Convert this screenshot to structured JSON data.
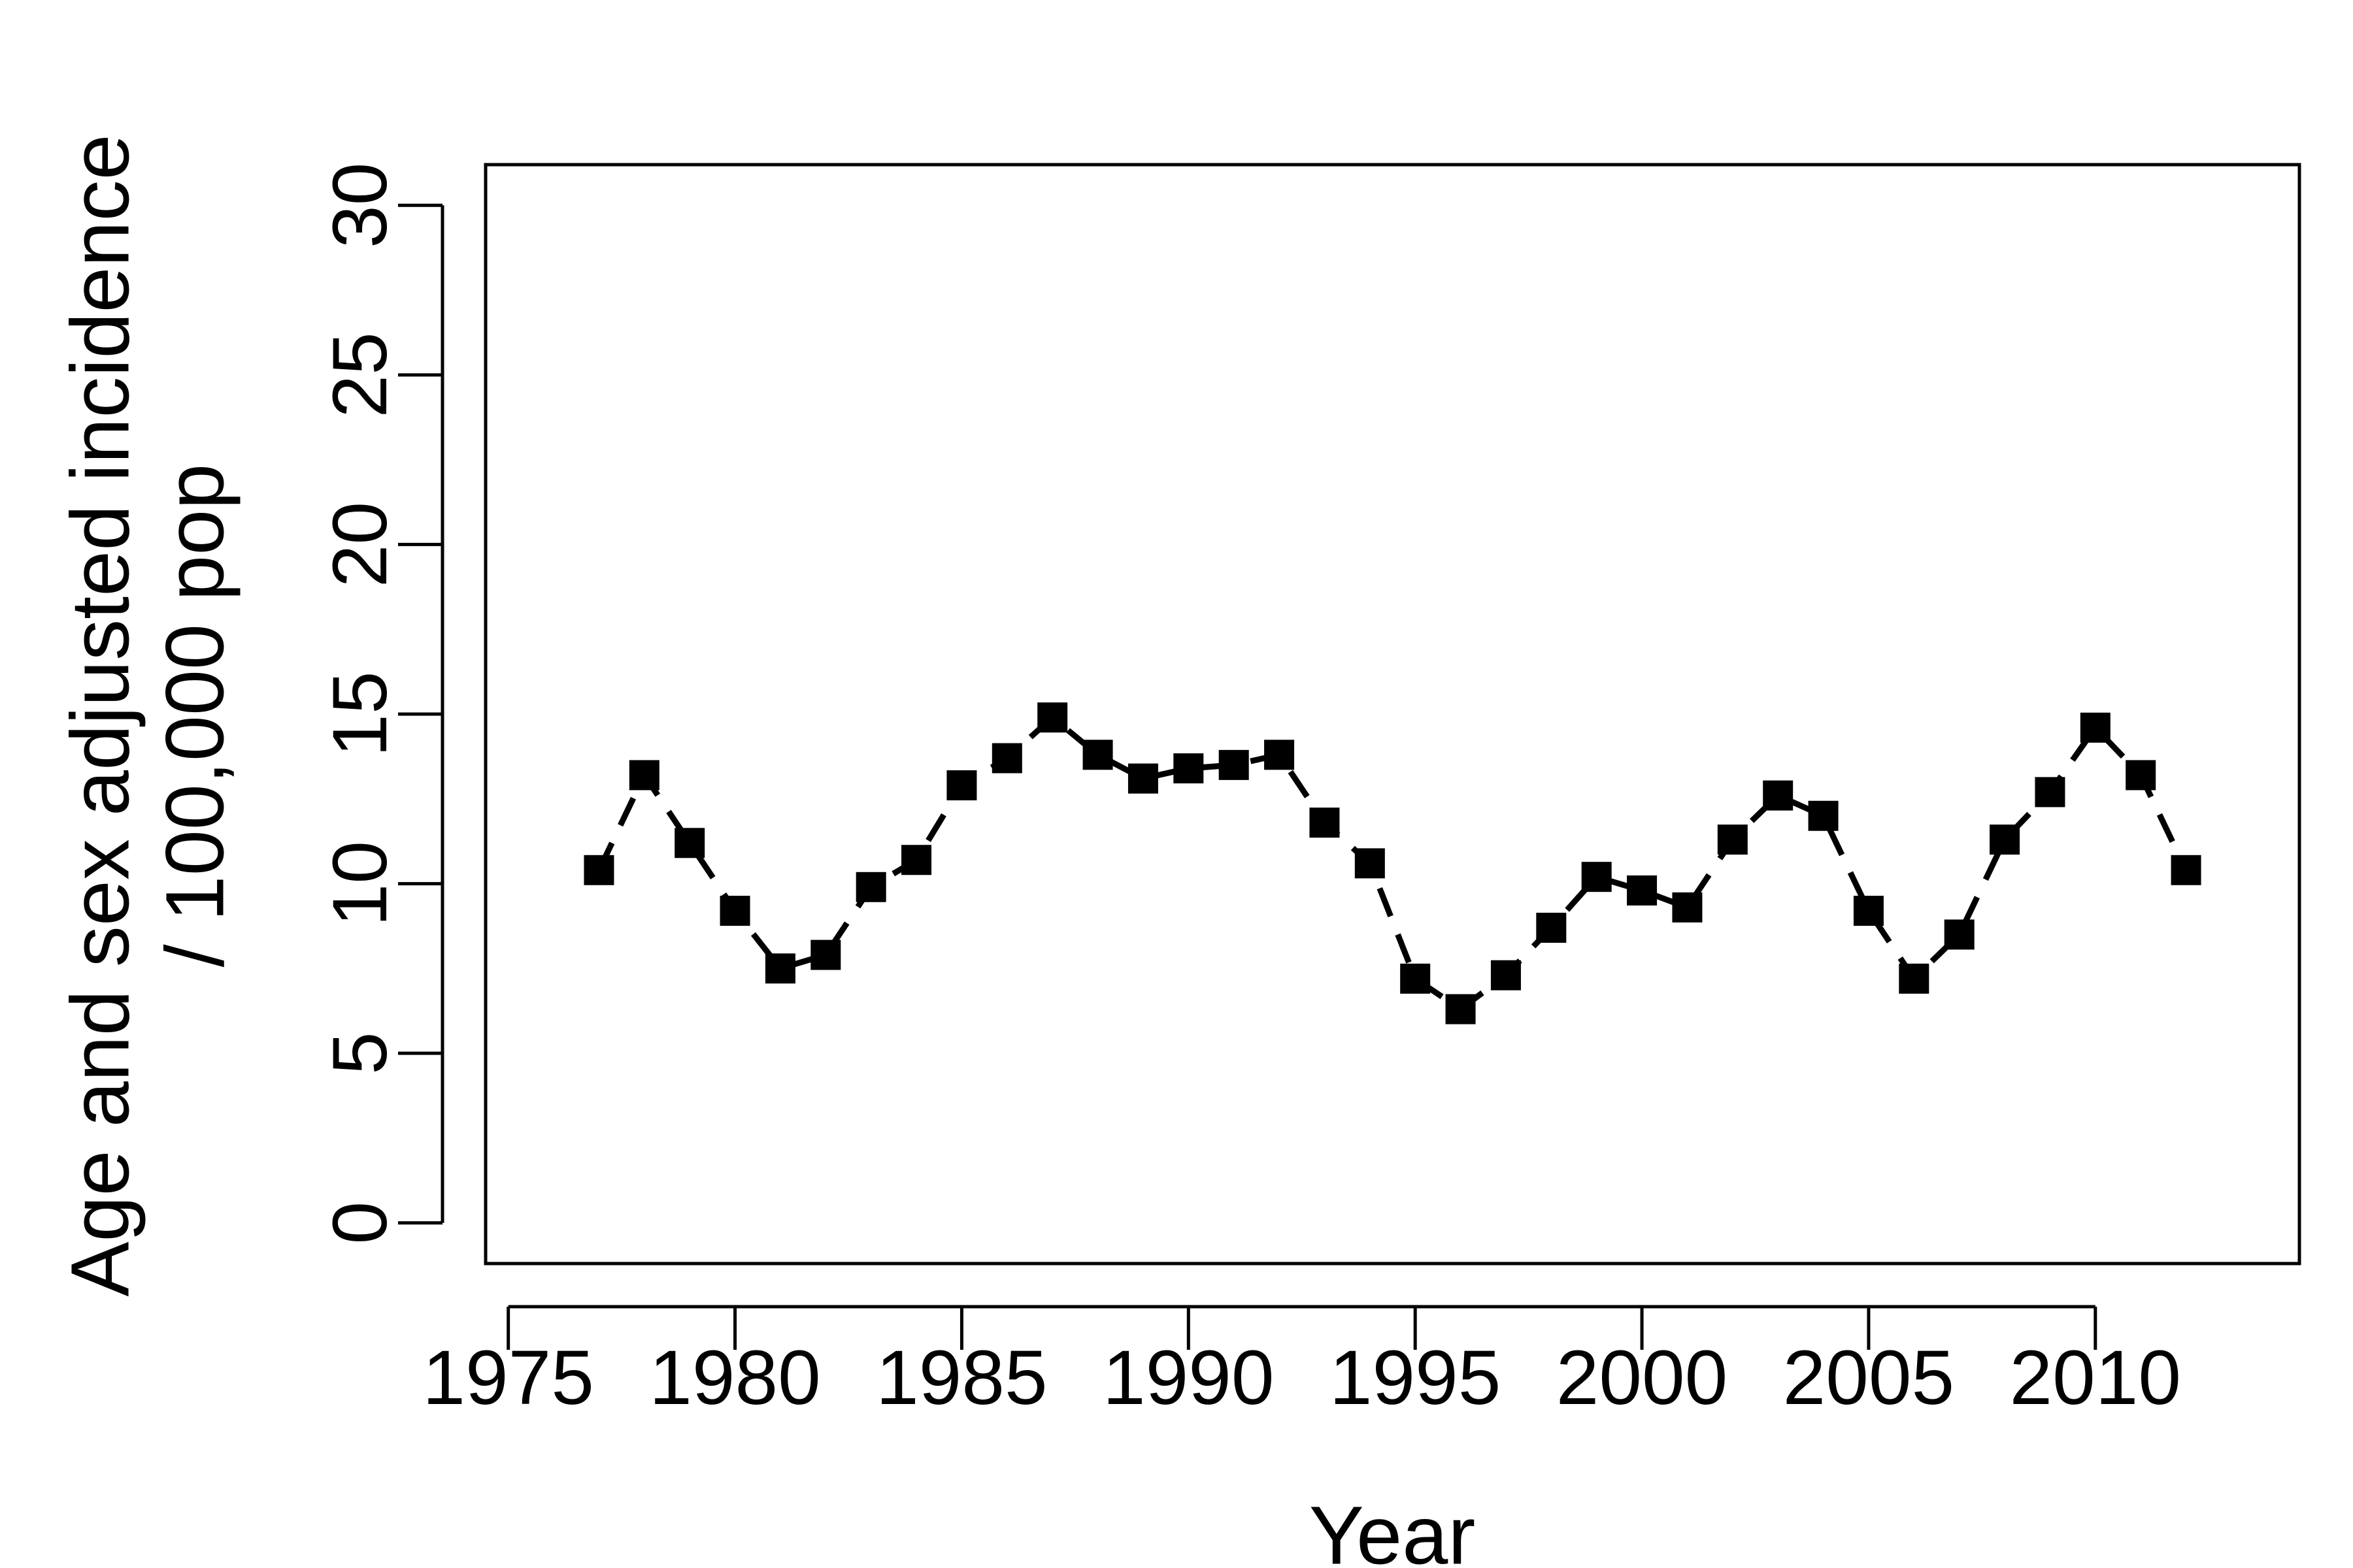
{
  "chart_data": {
    "type": "line",
    "xlabel": "Year",
    "ylabel": [
      "Age and sex adjusted incidence",
      "/ 100,000 pop"
    ],
    "x": [
      1977,
      1978,
      1979,
      1980,
      1981,
      1982,
      1983,
      1984,
      1985,
      1986,
      1987,
      1988,
      1989,
      1990,
      1991,
      1992,
      1993,
      1994,
      1995,
      1996,
      1997,
      1998,
      1999,
      2000,
      2001,
      2002,
      2003,
      2004,
      2005,
      2006,
      2007,
      2008,
      2009,
      2010,
      2011,
      2012
    ],
    "series": [
      {
        "color": "#000000",
        "values": [
          10.4,
          13.2,
          11.2,
          9.2,
          7.5,
          7.9,
          9.9,
          10.7,
          12.9,
          13.7,
          14.9,
          13.8,
          13.1,
          13.4,
          13.5,
          13.8,
          11.8,
          10.6,
          7.2,
          6.3,
          7.3,
          8.7,
          10.2,
          9.8,
          9.3,
          11.3,
          12.6,
          12.0,
          9.2,
          7.2,
          8.5,
          11.3,
          12.7,
          14.6,
          13.2,
          10.4
        ]
      }
    ],
    "xlim": [
      1974.5,
      2014.5
    ],
    "xticks": [
      1975,
      1980,
      1985,
      1990,
      1995,
      2000,
      2005,
      2010
    ],
    "ylim": [
      -1.2,
      31.2
    ],
    "yticks": [
      0,
      5,
      10,
      15,
      20,
      25,
      30
    ],
    "grid": false
  }
}
